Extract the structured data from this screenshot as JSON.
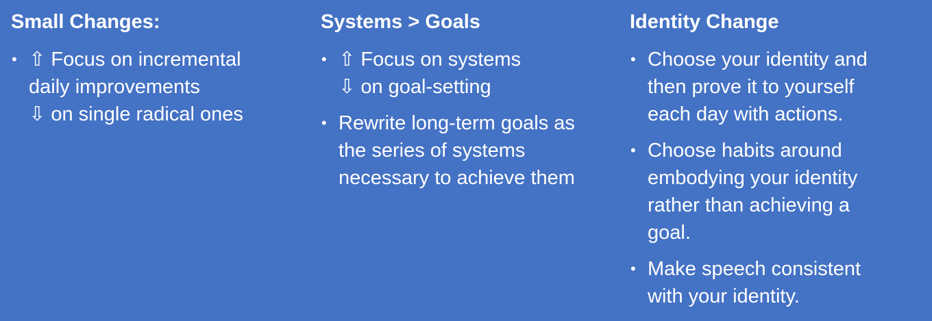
{
  "columns": [
    {
      "title": "Small Changes:",
      "bullets": [
        {
          "lines": [
            "⇧ Focus on incremental",
            "daily improvements",
            "⇩ on single radical ones"
          ]
        }
      ]
    },
    {
      "title": "Systems > Goals",
      "bullets": [
        {
          "lines": [
            "⇧ Focus on systems",
            "⇩ on goal-setting"
          ]
        },
        {
          "lines": [
            "Rewrite long-term goals as",
            "the series of systems",
            "necessary to achieve them"
          ]
        }
      ]
    },
    {
      "title": "Identity Change",
      "bullets": [
        {
          "lines": [
            "Choose your identity and",
            "then prove it to yourself",
            "each day with actions."
          ]
        },
        {
          "lines": [
            "Choose habits around",
            "embodying your identity",
            "rather than achieving a",
            "goal."
          ]
        },
        {
          "lines": [
            "Make speech consistent",
            "with your identity."
          ]
        }
      ]
    }
  ],
  "bullet_glyph": "•"
}
